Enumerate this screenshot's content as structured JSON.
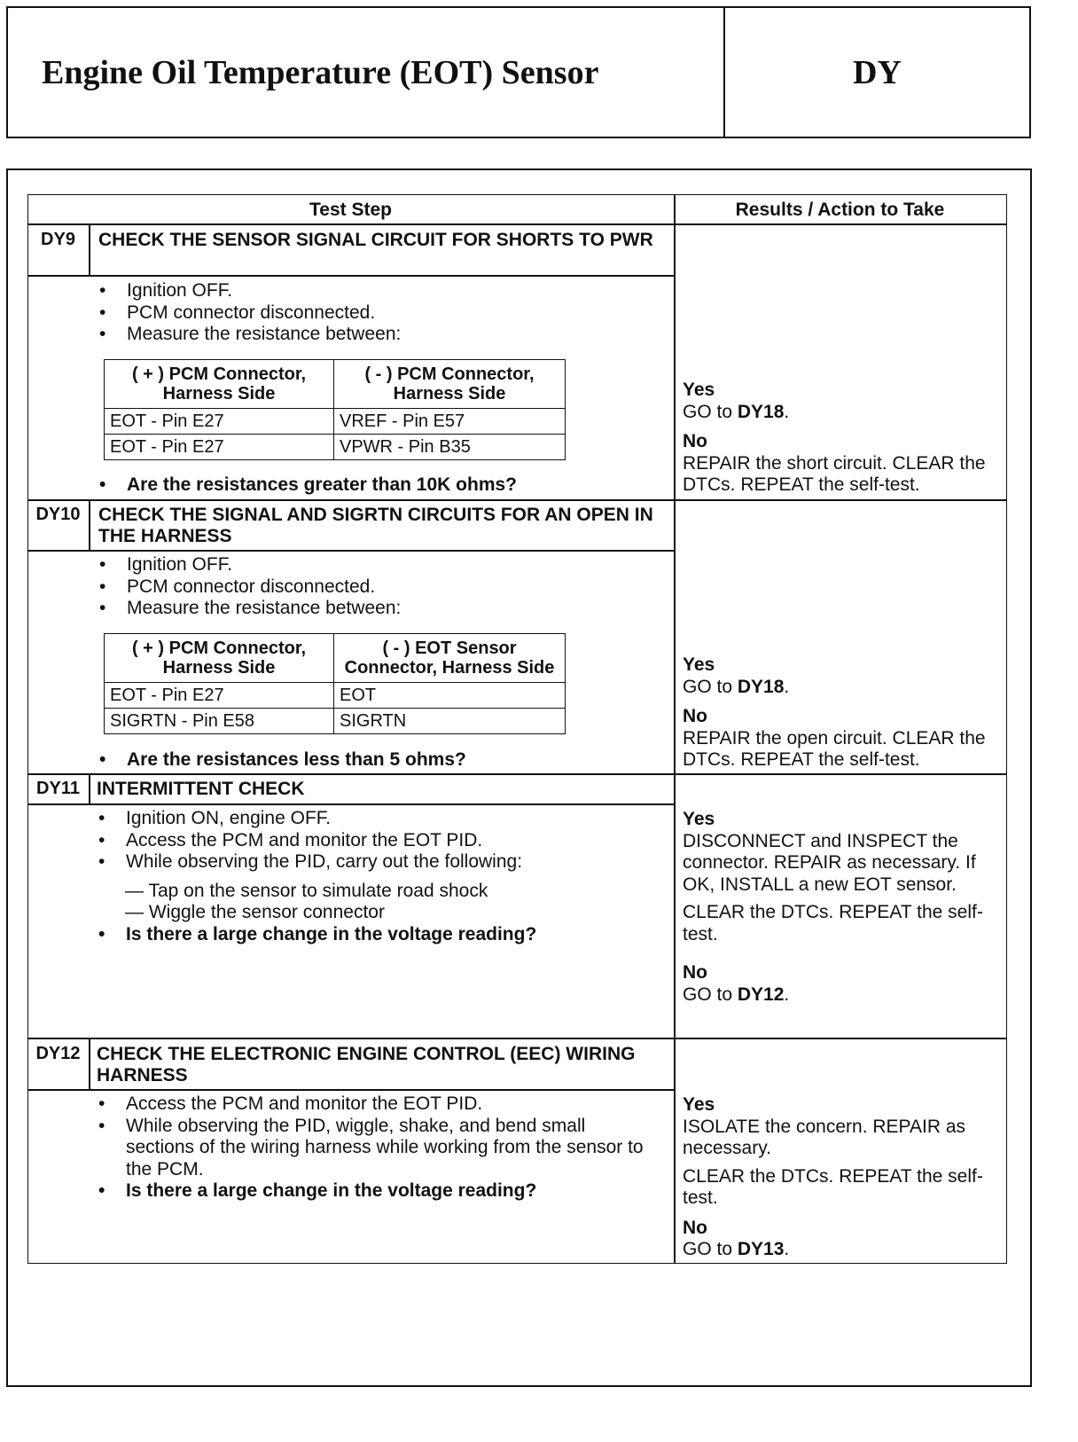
{
  "header": {
    "title": "Engine Oil Temperature (EOT) Sensor",
    "code": "DY"
  },
  "table": {
    "col_step": "Test Step",
    "col_results": "Results / Action to Take",
    "steps": [
      {
        "id": "DY9",
        "title": "CHECK THE SENSOR SIGNAL CIRCUIT FOR SHORTS TO PWR",
        "bullets": [
          "Ignition OFF.",
          "PCM connector disconnected.",
          "Measure the resistance between:"
        ],
        "subtable": {
          "headers": [
            "( + ) PCM Connector, Harness Side",
            "( - ) PCM Connector, Harness Side"
          ],
          "rows": [
            [
              "EOT - Pin E27",
              "VREF - Pin E57"
            ],
            [
              "EOT - Pin E27",
              "VPWR - Pin B35"
            ]
          ]
        },
        "question": "Are the resistances greater than 10K ohms?",
        "results": {
          "yes_label": "Yes",
          "yes_text": "GO to ",
          "yes_ref": "DY18",
          "yes_end": ".",
          "no_label": "No",
          "no_text": "REPAIR the short circuit. CLEAR the DTCs. REPEAT the self-test."
        }
      },
      {
        "id": "DY10",
        "title": "CHECK THE SIGNAL AND SIGRTN CIRCUITS FOR AN OPEN IN THE HARNESS",
        "bullets": [
          "Ignition OFF.",
          "PCM connector disconnected.",
          "Measure the resistance between:"
        ],
        "subtable": {
          "headers": [
            "( + ) PCM Connector, Harness Side",
            "( - ) EOT Sensor Connector, Harness Side"
          ],
          "rows": [
            [
              "EOT - Pin E27",
              "EOT"
            ],
            [
              "SIGRTN - Pin  E58",
              "SIGRTN"
            ]
          ]
        },
        "question": "Are the resistances less than 5 ohms?",
        "results": {
          "yes_label": "Yes",
          "yes_text": "GO to ",
          "yes_ref": "DY18",
          "yes_end": ".",
          "no_label": "No",
          "no_text": "REPAIR the open circuit. CLEAR the DTCs. REPEAT the self-test."
        }
      },
      {
        "id": "DY11",
        "title": "INTERMITTENT CHECK",
        "bullets": [
          "Ignition ON, engine OFF.",
          "Access the PCM and monitor the EOT PID.",
          "While observing the PID, carry out the following:"
        ],
        "dashes": [
          "— Tap on the sensor to simulate road shock",
          "— Wiggle the sensor connector"
        ],
        "question": "Is there a large change in the voltage reading?",
        "results": {
          "yes_label": "Yes",
          "yes_text": "DISCONNECT and INSPECT the connector. REPAIR as necessary. If OK, INSTALL a new EOT sensor.",
          "yes_text2": "CLEAR the DTCs. REPEAT the self-test.",
          "no_label": "No",
          "no_text": "GO to ",
          "no_ref": "DY12",
          "no_end": "."
        }
      },
      {
        "id": "DY12",
        "title": "CHECK THE ELECTRONIC ENGINE CONTROL (EEC) WIRING HARNESS",
        "bullets": [
          "Access the PCM and monitor the EOT PID.",
          "While observing the PID, wiggle, shake, and bend small sections of the wiring harness while working from the sensor to the PCM."
        ],
        "question": "Is there a large change in the voltage reading?",
        "results": {
          "yes_label": "Yes",
          "yes_text": "ISOLATE the concern. REPAIR as necessary.",
          "yes_text2": "CLEAR the DTCs. REPEAT the self-test.",
          "no_label": "No",
          "no_text": "GO to ",
          "no_ref": "DY13",
          "no_end": "."
        }
      }
    ]
  }
}
